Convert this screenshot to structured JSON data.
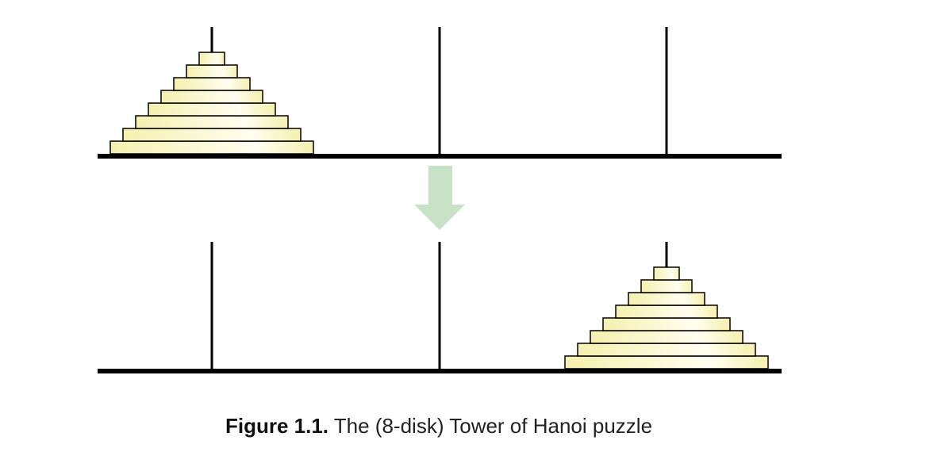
{
  "caption": {
    "label": "Figure 1.1.",
    "text": "The (8-disk) Tower of Hanoi puzzle"
  },
  "puzzle": {
    "disk_count": 8,
    "pegs": 3,
    "initial_peg": 1,
    "final_peg": 3
  },
  "colors": {
    "peg": "#000000",
    "base": "#000000",
    "disk_stroke": "#000000",
    "disk_fill_edge": "#f5f0b0",
    "disk_fill_center": "#fffef0",
    "arrow": "#c8e2c8"
  }
}
